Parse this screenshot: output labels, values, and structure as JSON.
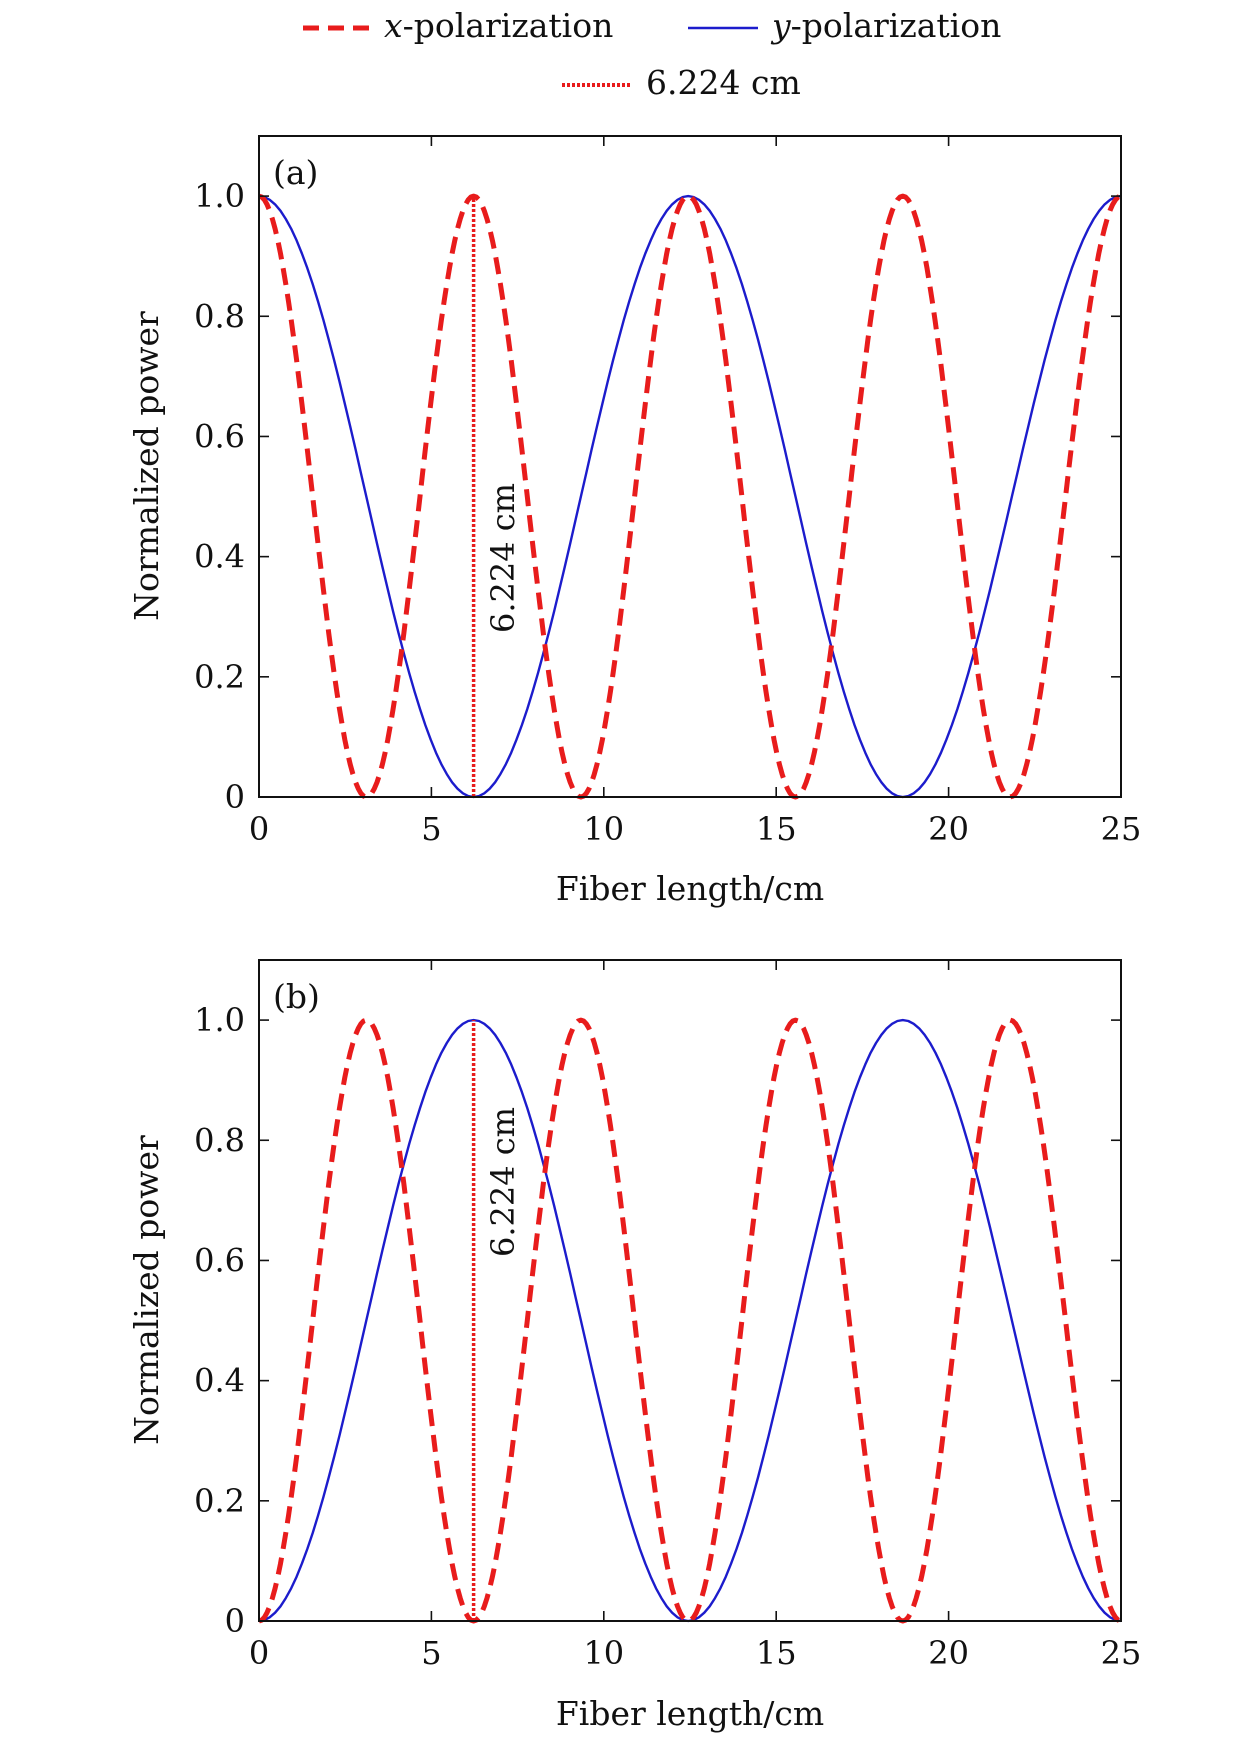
{
  "legend": {
    "items": [
      {
        "prefix": "x",
        "suffix": "-polarization",
        "style": "dashed",
        "color": "#e81c1c"
      },
      {
        "prefix": "y",
        "suffix": "-polarization",
        "style": "solid",
        "color": "#1c1ccc"
      },
      {
        "prefix": "",
        "suffix": "6.224 cm",
        "style": "dotted",
        "color": "#e81c1c"
      }
    ]
  },
  "chart_data": [
    {
      "type": "line",
      "panel_label": "(a)",
      "xlabel": "Fiber length/cm",
      "ylabel": "Normalized power",
      "xlim": [
        0,
        25
      ],
      "ylim": [
        0,
        1.1
      ],
      "xticks": [
        0,
        5,
        10,
        15,
        20,
        25
      ],
      "xtick_labels": [
        "0",
        "5",
        "10",
        "15",
        "20",
        "25"
      ],
      "yticks": [
        0,
        0.2,
        0.4,
        0.6,
        0.8,
        1.0
      ],
      "ytick_labels": [
        "0",
        "0.2",
        "0.4",
        "0.6",
        "0.8",
        "1.0"
      ],
      "grid": false,
      "series": [
        {
          "name": "x-polarization",
          "style": "dashed",
          "color": "#e81c1c",
          "x": [
            0,
            3.112,
            6.224,
            9.336,
            12.448,
            15.56,
            18.672,
            21.784,
            25
          ],
          "y": [
            1,
            0,
            1,
            0,
            1,
            0,
            1,
            0,
            1
          ]
        },
        {
          "name": "y-polarization",
          "style": "solid",
          "color": "#1c1ccc",
          "x": [
            0,
            6.224,
            12.448,
            18.672,
            25
          ],
          "y": [
            1,
            0,
            1,
            0,
            1
          ]
        }
      ],
      "annotation": {
        "text": "6.224 cm",
        "x": 6.224,
        "y_from": 0,
        "y_to": 1.0,
        "style": "dotted",
        "color": "#e81c1c"
      }
    },
    {
      "type": "line",
      "panel_label": "(b)",
      "xlabel": "Fiber length/cm",
      "ylabel": "Normalized power",
      "xlim": [
        0,
        25
      ],
      "ylim": [
        0,
        1.1
      ],
      "xticks": [
        0,
        5,
        10,
        15,
        20,
        25
      ],
      "xtick_labels": [
        "0",
        "5",
        "10",
        "15",
        "20",
        "25"
      ],
      "yticks": [
        0,
        0.2,
        0.4,
        0.6,
        0.8,
        1.0
      ],
      "ytick_labels": [
        "0",
        "0.2",
        "0.4",
        "0.6",
        "0.8",
        "1.0"
      ],
      "grid": false,
      "series": [
        {
          "name": "x-polarization",
          "style": "dashed",
          "color": "#e81c1c",
          "x": [
            0,
            3.112,
            6.224,
            9.336,
            12.448,
            15.56,
            18.672,
            21.784,
            25
          ],
          "y": [
            0,
            1,
            0,
            1,
            0,
            1,
            0,
            1,
            0
          ]
        },
        {
          "name": "y-polarization",
          "style": "solid",
          "color": "#1c1ccc",
          "x": [
            0,
            6.224,
            12.448,
            18.672,
            25
          ],
          "y": [
            0,
            1,
            0,
            1,
            0
          ]
        }
      ],
      "annotation": {
        "text": "6.224 cm",
        "x": 6.224,
        "y_from": 0,
        "y_to": 1.0,
        "style": "dotted",
        "color": "#e81c1c"
      }
    }
  ]
}
